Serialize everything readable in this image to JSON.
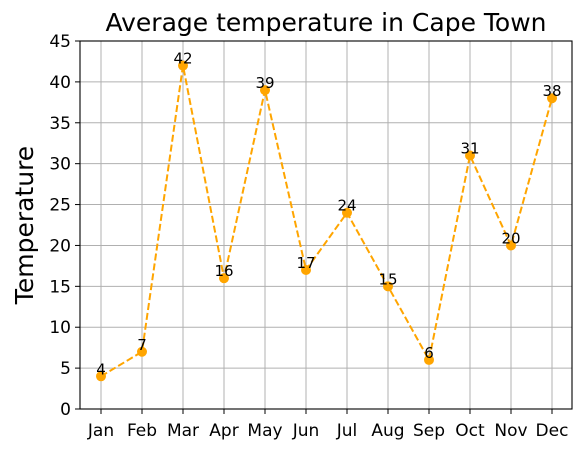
{
  "chart_data": {
    "type": "line",
    "title": "Average temperature in Cape Town",
    "xlabel": "",
    "ylabel": "Temperature",
    "categories": [
      "Jan",
      "Feb",
      "Mar",
      "Apr",
      "May",
      "Jun",
      "Jul",
      "Aug",
      "Sep",
      "Oct",
      "Nov",
      "Dec"
    ],
    "series": [
      {
        "values": [
          4,
          7,
          42,
          16,
          39,
          17,
          24,
          15,
          6,
          31,
          20,
          38
        ],
        "color": "#ffa500",
        "line_style": "dashed",
        "marker": "circle"
      }
    ],
    "ylim": [
      0,
      45
    ],
    "yticks": [
      0,
      5,
      10,
      15,
      20,
      25,
      30,
      35,
      40,
      45
    ],
    "grid": true,
    "data_labels": true,
    "legend": "none"
  }
}
